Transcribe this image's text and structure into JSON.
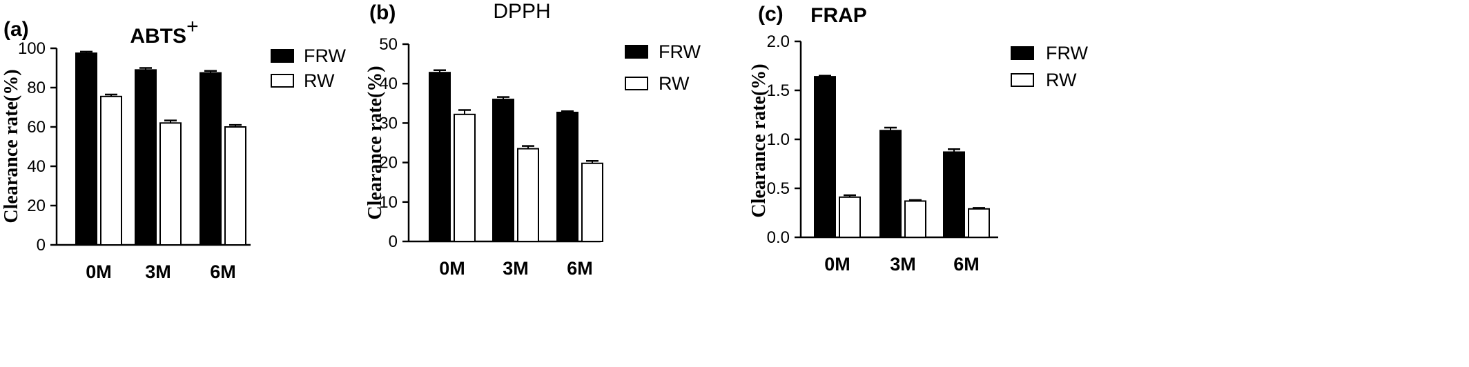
{
  "panels": [
    {
      "letter": "(a)",
      "title_main": "ABTS",
      "title_sup": "+"
    },
    {
      "letter": "(b)",
      "title_main": "DPPH",
      "title_sup": ""
    },
    {
      "letter": "(c)",
      "title_main": "FRAP",
      "title_sup": ""
    }
  ],
  "colors": {
    "FRW": "#000000",
    "RW": "#ffffff",
    "stroke": "#000000"
  },
  "chart_data": [
    {
      "type": "bar",
      "title": "ABTS+",
      "ylabel": "Clearance rate(%)",
      "xlabel": "",
      "categories": [
        "0M",
        "3M",
        "6M"
      ],
      "series": [
        {
          "name": "FRW",
          "values": [
            97.5,
            89,
            87.5
          ],
          "errors": [
            0.8,
            1.0,
            1.0
          ]
        },
        {
          "name": "RW",
          "values": [
            75.5,
            62,
            60
          ],
          "errors": [
            1.0,
            1.3,
            1.0
          ]
        }
      ],
      "ylim": [
        0,
        100
      ],
      "yticks": [
        "0",
        "20",
        "40",
        "60",
        "80",
        "100"
      ],
      "legend": "right"
    },
    {
      "type": "bar",
      "title": "DPPH",
      "ylabel": "Clearance rate(%)",
      "xlabel": "",
      "categories": [
        "0M",
        "3M",
        "6M"
      ],
      "series": [
        {
          "name": "FRW",
          "values": [
            42.8,
            36,
            32.7
          ],
          "errors": [
            0.6,
            0.6,
            0.3
          ]
        },
        {
          "name": "RW",
          "values": [
            32.2,
            23.5,
            19.8
          ],
          "errors": [
            1.1,
            0.7,
            0.6
          ]
        }
      ],
      "ylim": [
        0,
        50
      ],
      "yticks": [
        "0",
        "10",
        "20",
        "30",
        "40",
        "50"
      ],
      "legend": "right"
    },
    {
      "type": "bar",
      "title": "FRAP",
      "ylabel": "Clearance rate(%)",
      "xlabel": "",
      "categories": [
        "0M",
        "3M",
        "6M"
      ],
      "series": [
        {
          "name": "FRW",
          "values": [
            1.64,
            1.09,
            0.87
          ],
          "errors": [
            0.01,
            0.03,
            0.03
          ]
        },
        {
          "name": "RW",
          "values": [
            0.41,
            0.37,
            0.29
          ],
          "errors": [
            0.02,
            0.01,
            0.01
          ]
        }
      ],
      "ylim": [
        0,
        2.0
      ],
      "yticks": [
        "0.0",
        "0.5",
        "1.0",
        "1.5",
        "2.0"
      ],
      "legend": "right"
    }
  ]
}
